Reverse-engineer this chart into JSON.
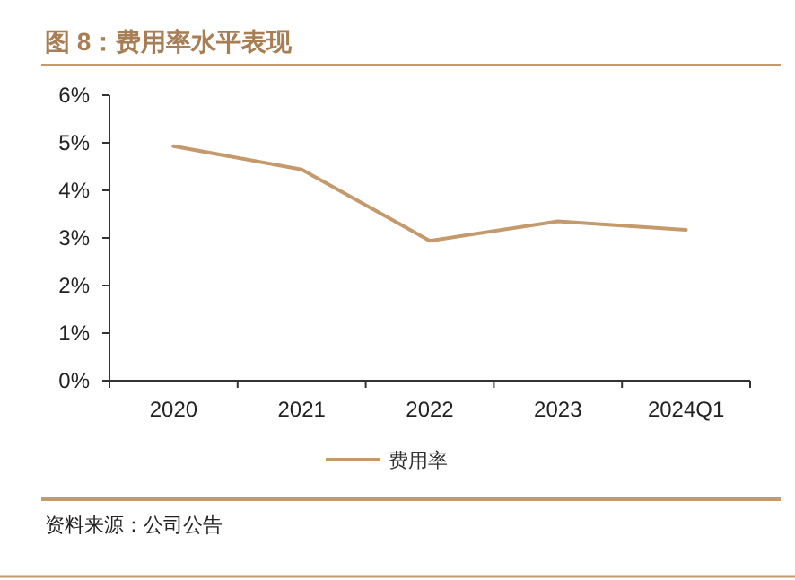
{
  "chart_data": {
    "type": "line",
    "title": "图 8：费用率水平表现",
    "categories": [
      "2020",
      "2021",
      "2022",
      "2023",
      "2024Q1"
    ],
    "series": [
      {
        "name": "费用率",
        "color": "#c49a6c",
        "values": [
          4.93,
          4.44,
          2.94,
          3.35,
          3.17
        ]
      }
    ],
    "ylim": [
      0,
      6
    ],
    "yticks": [
      {
        "value": 0,
        "label": "0%"
      },
      {
        "value": 1,
        "label": "1%"
      },
      {
        "value": 2,
        "label": "2%"
      },
      {
        "value": 3,
        "label": "3%"
      },
      {
        "value": 4,
        "label": "4%"
      },
      {
        "value": 5,
        "label": "5%"
      },
      {
        "value": 6,
        "label": "6%"
      }
    ],
    "legend": "bottom",
    "marker": "none",
    "line_style": "solid",
    "grid": false,
    "annotations": [
      "资料来源：公司公告"
    ]
  }
}
